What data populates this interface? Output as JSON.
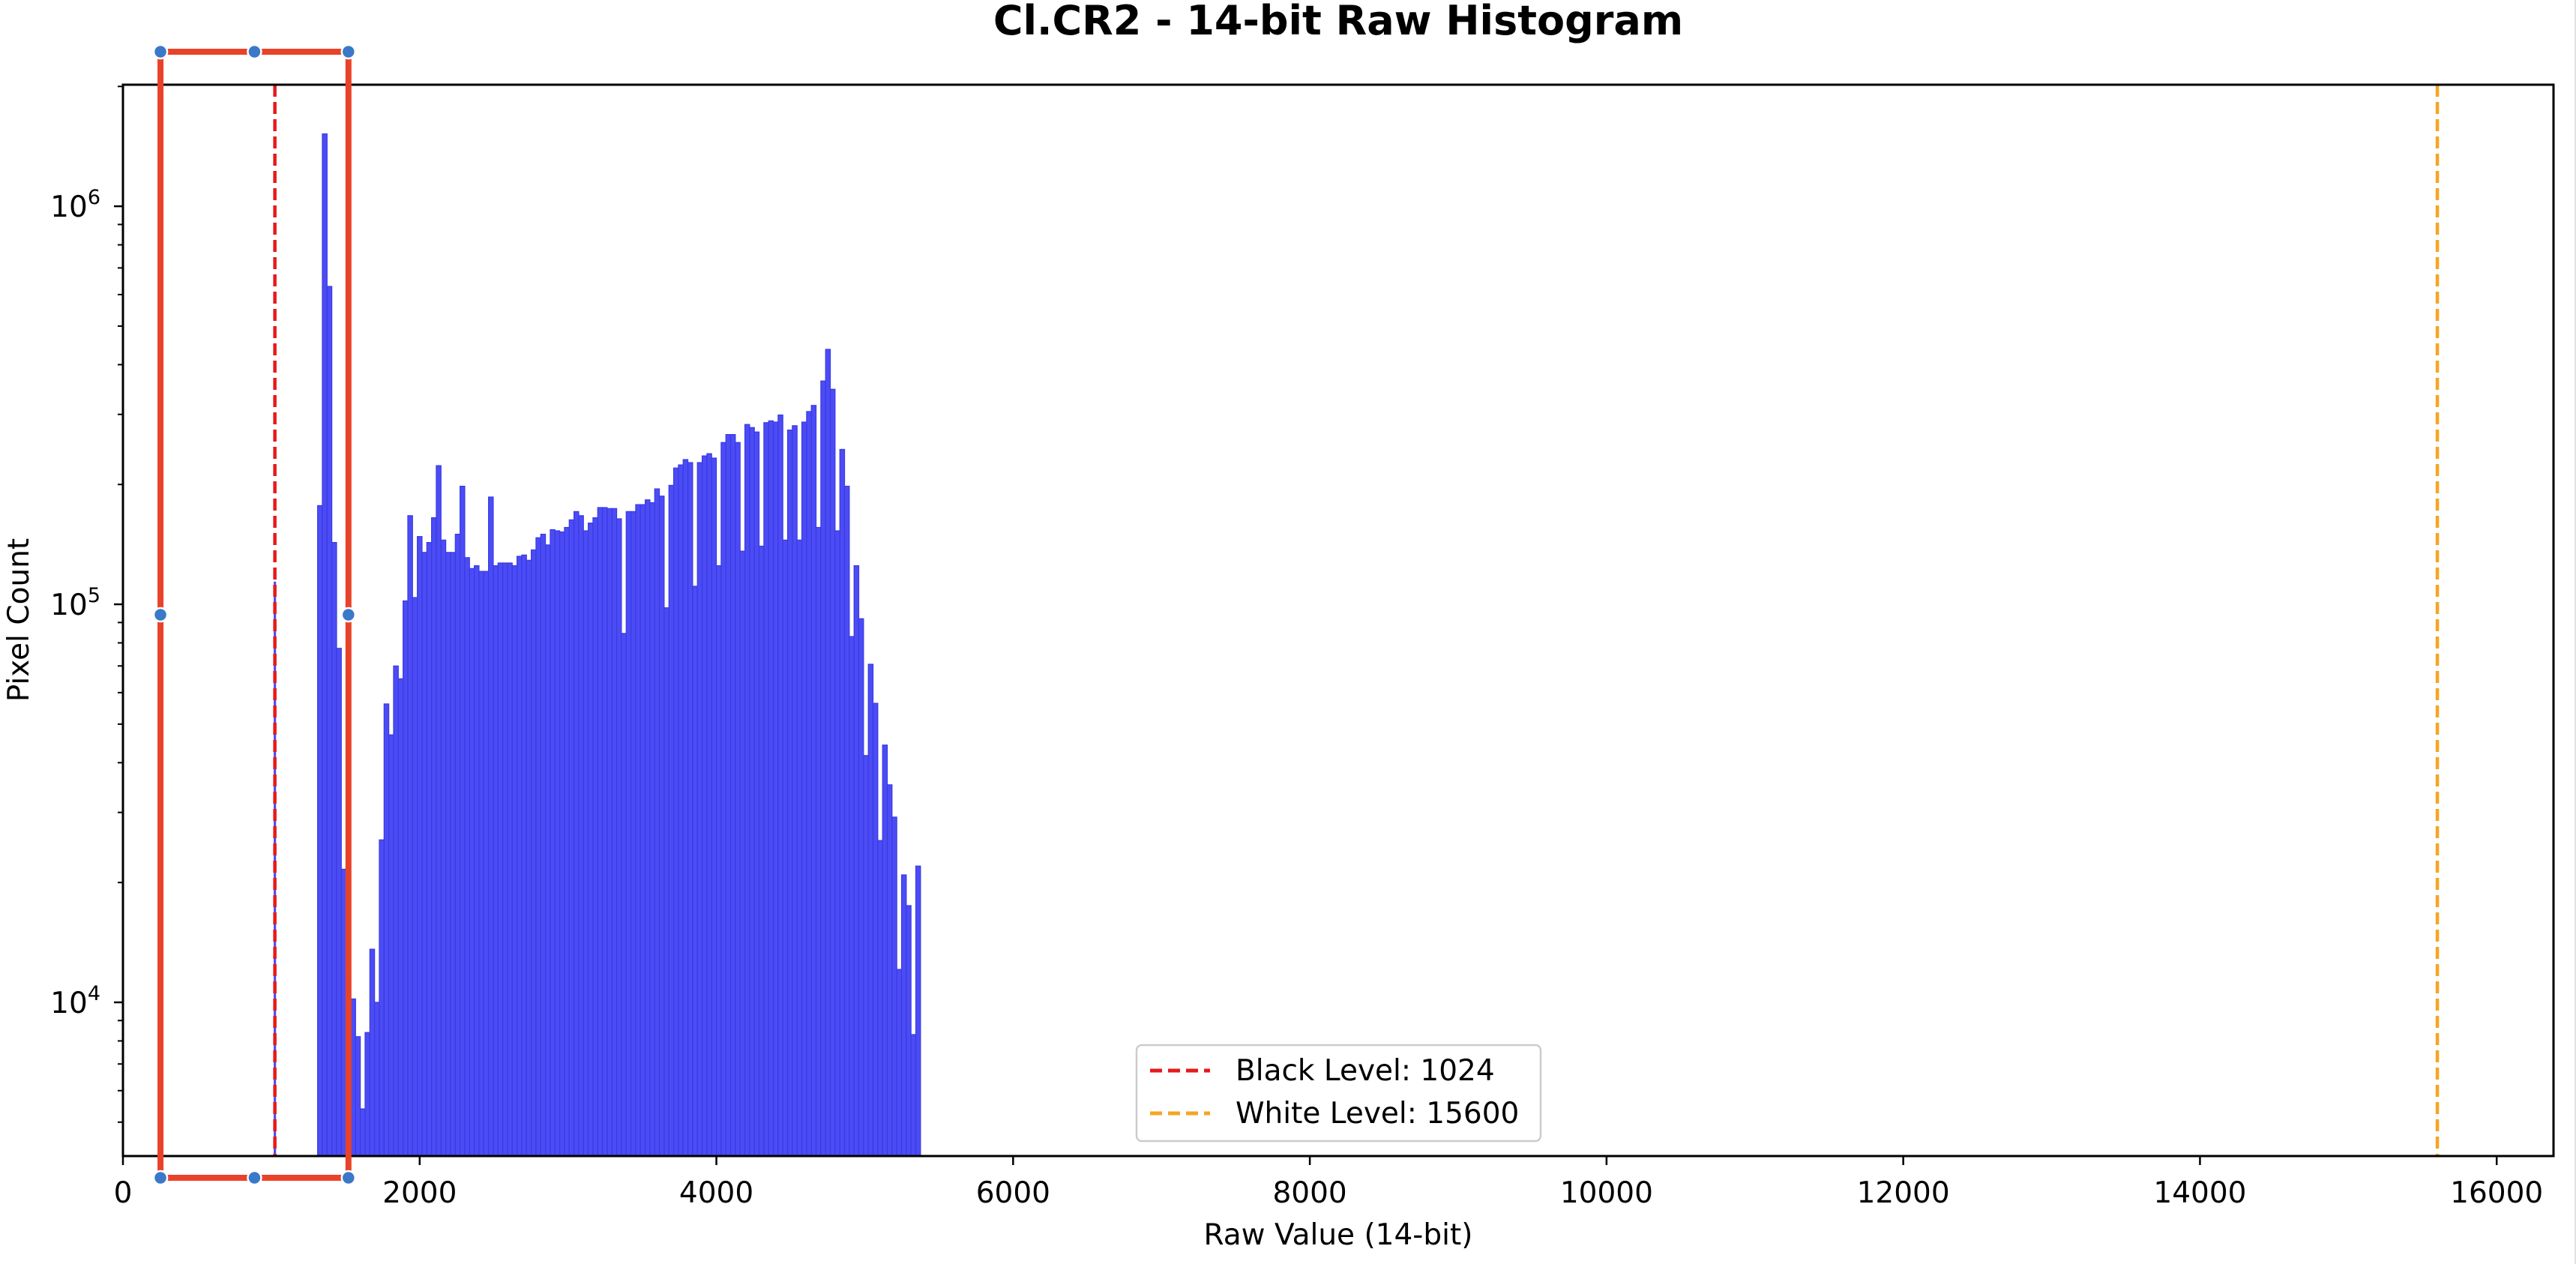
{
  "chart_data": {
    "type": "bar",
    "subtype": "histogram",
    "title": "Cl.CR2 - 14-bit Raw Histogram",
    "xlabel": "Raw Value (14-bit)",
    "ylabel": "Pixel Count",
    "xscale": "linear",
    "yscale": "log",
    "xlim": [
      0,
      16383
    ],
    "ylim": [
      4110,
      2020000
    ],
    "grid": false,
    "xticks": [
      0,
      2000,
      4000,
      6000,
      8000,
      10000,
      12000,
      14000,
      16000
    ],
    "xtick_labels": [
      "0",
      "2000",
      "4000",
      "6000",
      "8000",
      "10000",
      "12000",
      "14000",
      "16000"
    ],
    "yticks": [
      {
        "value": 10000,
        "base": "10",
        "exp": "4"
      },
      {
        "value": 100000,
        "base": "10",
        "exp": "5"
      },
      {
        "value": 1000000,
        "base": "10",
        "exp": "6"
      }
    ],
    "bar_color": "#4c4cf5",
    "bar_edge_color": "#3a3ae6",
    "histogram": {
      "bin_start": 1312,
      "bin_width": 32,
      "counts": [
        177000,
        1520000,
        629000,
        143000,
        77500,
        21600,
        12000,
        10200,
        8200,
        5400,
        8400,
        13600,
        10000,
        25600,
        56200,
        47000,
        70000,
        65000,
        102000,
        167000,
        104000,
        148000,
        135000,
        143000,
        165000,
        223000,
        145000,
        135000,
        135000,
        150000,
        198000,
        131000,
        123000,
        125000,
        121000,
        121000,
        186000,
        125000,
        127000,
        127000,
        127000,
        125000,
        132000,
        133000,
        129000,
        137000,
        147000,
        150000,
        141000,
        154000,
        153000,
        152000,
        156000,
        163000,
        171000,
        167000,
        153000,
        160000,
        165000,
        175000,
        175000,
        174000,
        174000,
        164000,
        84500,
        171000,
        171000,
        178000,
        178000,
        183000,
        180000,
        195000,
        187000,
        98000,
        199000,
        220000,
        224000,
        231000,
        227000,
        111000,
        227000,
        236000,
        239000,
        233000,
        125000,
        255000,
        267000,
        267000,
        255000,
        136000,
        283000,
        278000,
        271000,
        140000,
        286000,
        289000,
        287000,
        299000,
        145000,
        274000,
        281000,
        145000,
        287000,
        305000,
        316000,
        156000,
        364000,
        437000,
        347000,
        153000,
        245000,
        198000,
        83000,
        125000,
        92000,
        41700,
        70700,
        56400,
        25500,
        44300,
        35200,
        29200,
        12100,
        20900,
        17500,
        8300,
        22000
      ]
    },
    "extra_bars": [
      {
        "x0": 1016,
        "x1": 1032,
        "count": 114000
      }
    ],
    "reference_lines": [
      {
        "name": "black-level-line",
        "label": "Black Level: 1024",
        "x": 1024,
        "color": "#e41a1c",
        "style": "dashed"
      },
      {
        "name": "white-level-line",
        "label": "White Level: 15600",
        "x": 15600,
        "color": "#f5a524",
        "style": "dashed"
      }
    ],
    "legend": {
      "position": "lower center",
      "entries": [
        {
          "label": "Black Level: 1024",
          "color": "#e41a1c",
          "style": "dashed"
        },
        {
          "label": "White Level: 15600",
          "color": "#f5a524",
          "style": "dashed"
        }
      ]
    },
    "annotations": []
  },
  "overlay": {
    "selection_box": {
      "x0_value": 253,
      "x1_value": 1520,
      "stroke_color": "#e8432a",
      "handle_color": "#3a78c9"
    }
  }
}
